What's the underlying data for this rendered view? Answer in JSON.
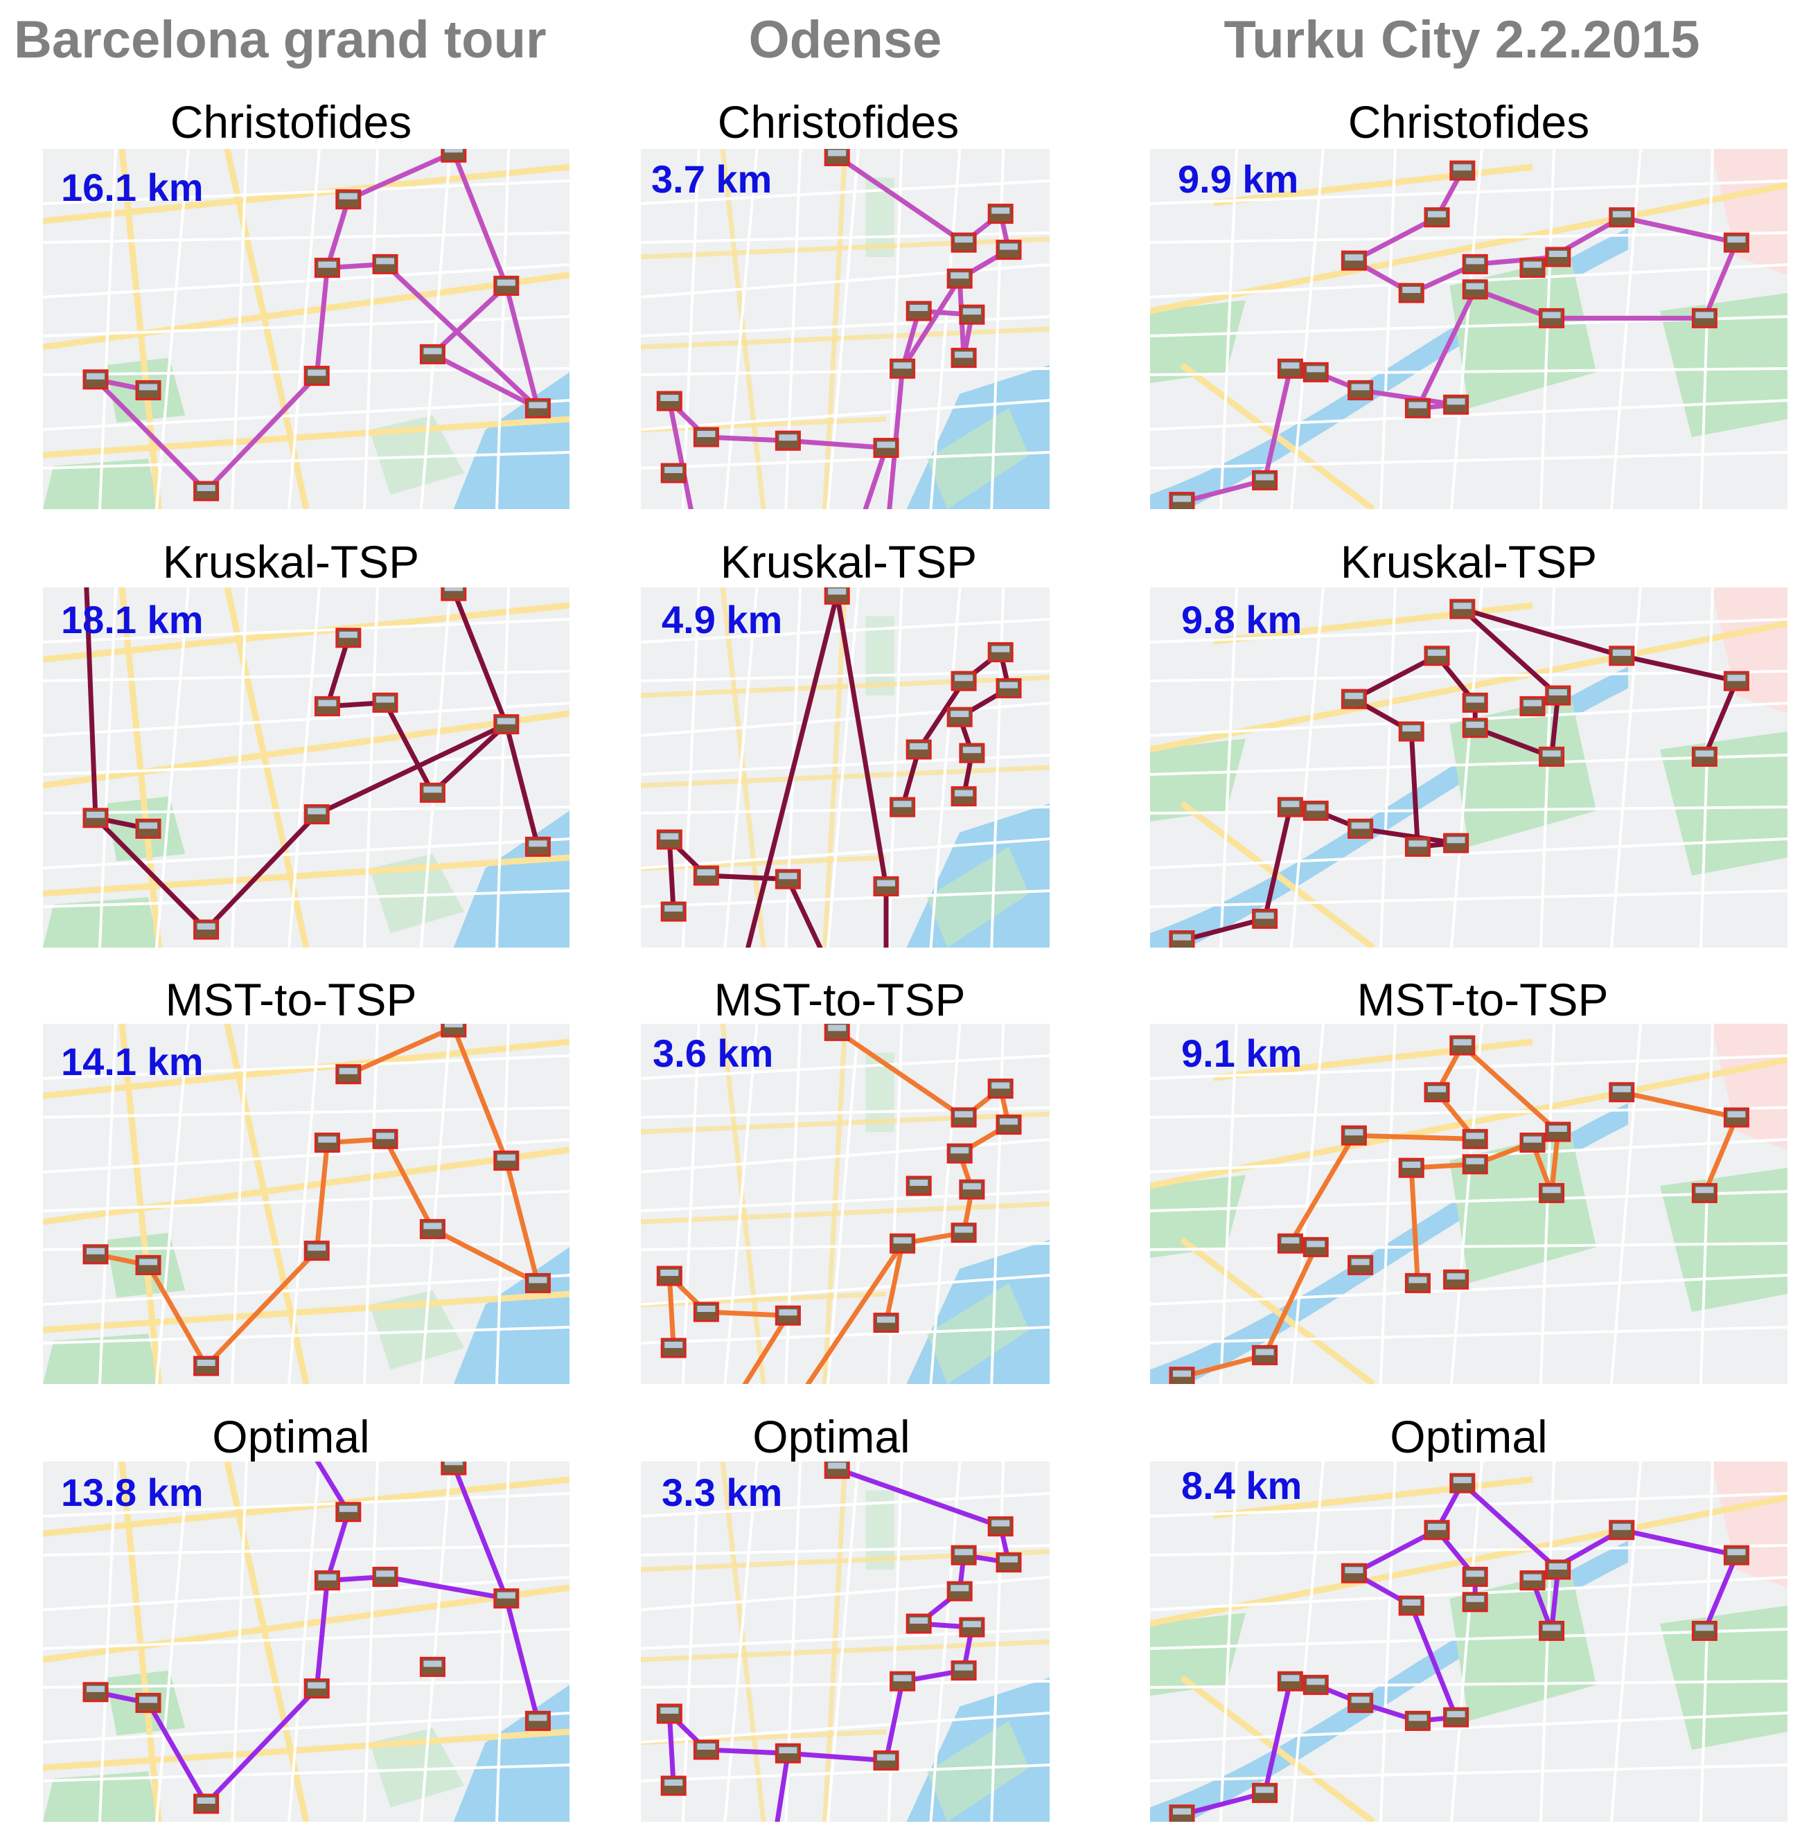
{
  "cities": [
    {
      "name": "Barcelona grand tour",
      "panels": [
        {
          "algorithm": "Christofides",
          "distance": "16.1 km"
        },
        {
          "algorithm": "Kruskal-TSP",
          "distance": "18.1 km"
        },
        {
          "algorithm": "MST-to-TSP",
          "distance": "14.1 km"
        },
        {
          "algorithm": "Optimal",
          "distance": "13.8 km"
        }
      ]
    },
    {
      "name": "Odense",
      "panels": [
        {
          "algorithm": "Christofides",
          "distance": "3.7 km"
        },
        {
          "algorithm": "Kruskal-TSP",
          "distance": "4.9 km"
        },
        {
          "algorithm": "MST-to-TSP",
          "distance": "3.6 km"
        },
        {
          "algorithm": "Optimal",
          "distance": "3.3 km"
        }
      ]
    },
    {
      "name": "Turku City 2.2.2015",
      "panels": [
        {
          "algorithm": "Christofides",
          "distance": "9.9 km"
        },
        {
          "algorithm": "Kruskal-TSP",
          "distance": "9.8 km"
        },
        {
          "algorithm": "MST-to-TSP",
          "distance": "9.1 km"
        },
        {
          "algorithm": "Optimal",
          "distance": "8.4 km"
        }
      ]
    }
  ],
  "route_colors": {
    "Christofides": "#c050c0",
    "Kruskal-TSP": "#80103a",
    "MST-to-TSP": "#f07830",
    "Optimal": "#9a28e8"
  },
  "distance_color": "#1010e0",
  "city_title_color": "#808080",
  "map_colors": {
    "land": "#eef0f1",
    "park": "#bfe5c4",
    "water": "#9fd3f0",
    "road": "#ffffff",
    "major_road": "#fbe39a"
  }
}
